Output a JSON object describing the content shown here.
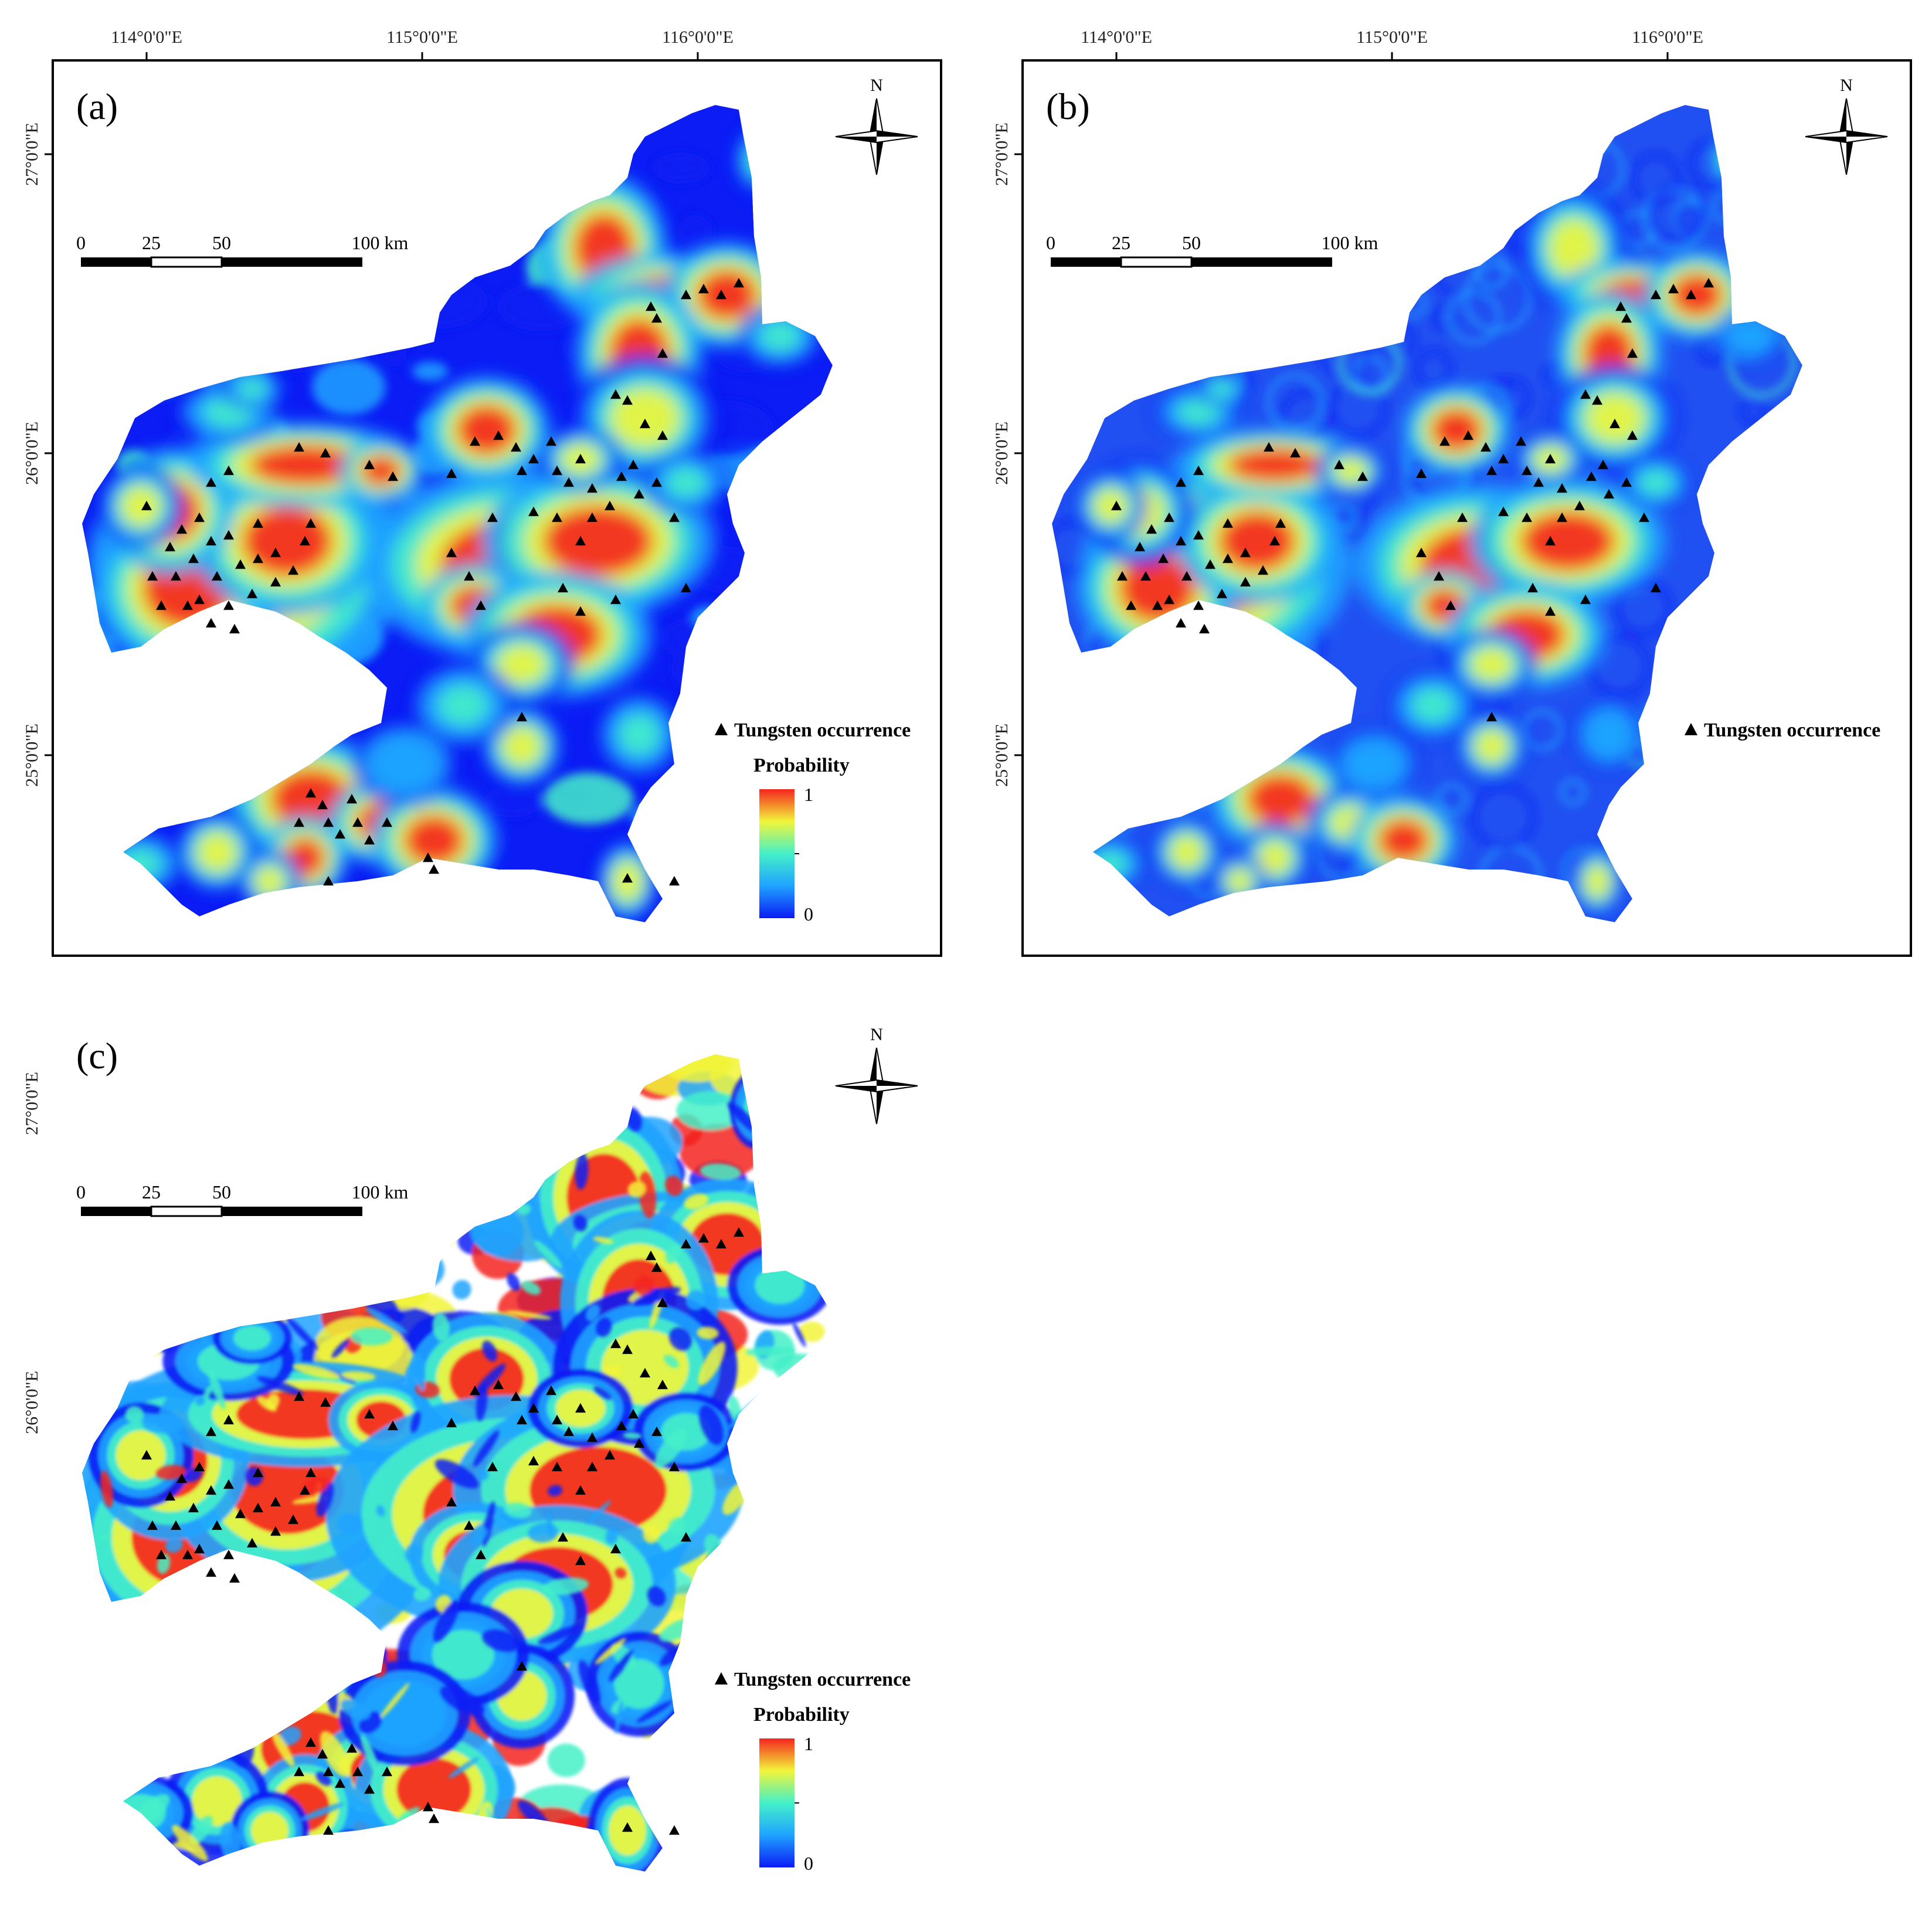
{
  "figure": {
    "panels": [
      {
        "id": "a",
        "letter": "(a)",
        "variant": "smooth"
      },
      {
        "id": "b",
        "letter": "(b)",
        "variant": "rings"
      },
      {
        "id": "c",
        "letter": "(c)",
        "variant": "noisy"
      }
    ],
    "lon_labels": [
      "114°0'0\"E",
      "115°0'0\"E",
      "116°0'0\"E"
    ],
    "lat_labels": [
      "27°0'0\"E",
      "26°0'0\"E",
      "25°0'0\"E"
    ],
    "north_label": "N",
    "scale_bar": {
      "labels": [
        "0",
        "25",
        "50",
        "100 km"
      ]
    },
    "legend": {
      "occurrence_label": "Tungsten occurrence",
      "probability_title": "Probability",
      "max_label": "1",
      "min_label": "0"
    },
    "colors": {
      "low": "#0b1cf5",
      "mid_low": "#1fa3ff",
      "mid": "#44f0c8",
      "mid_high": "#f2f53a",
      "high": "#f5251e",
      "occurrence_marker": "#000000"
    },
    "icons": [
      "compass-rose-icon",
      "triangle-marker-icon"
    ]
  }
}
